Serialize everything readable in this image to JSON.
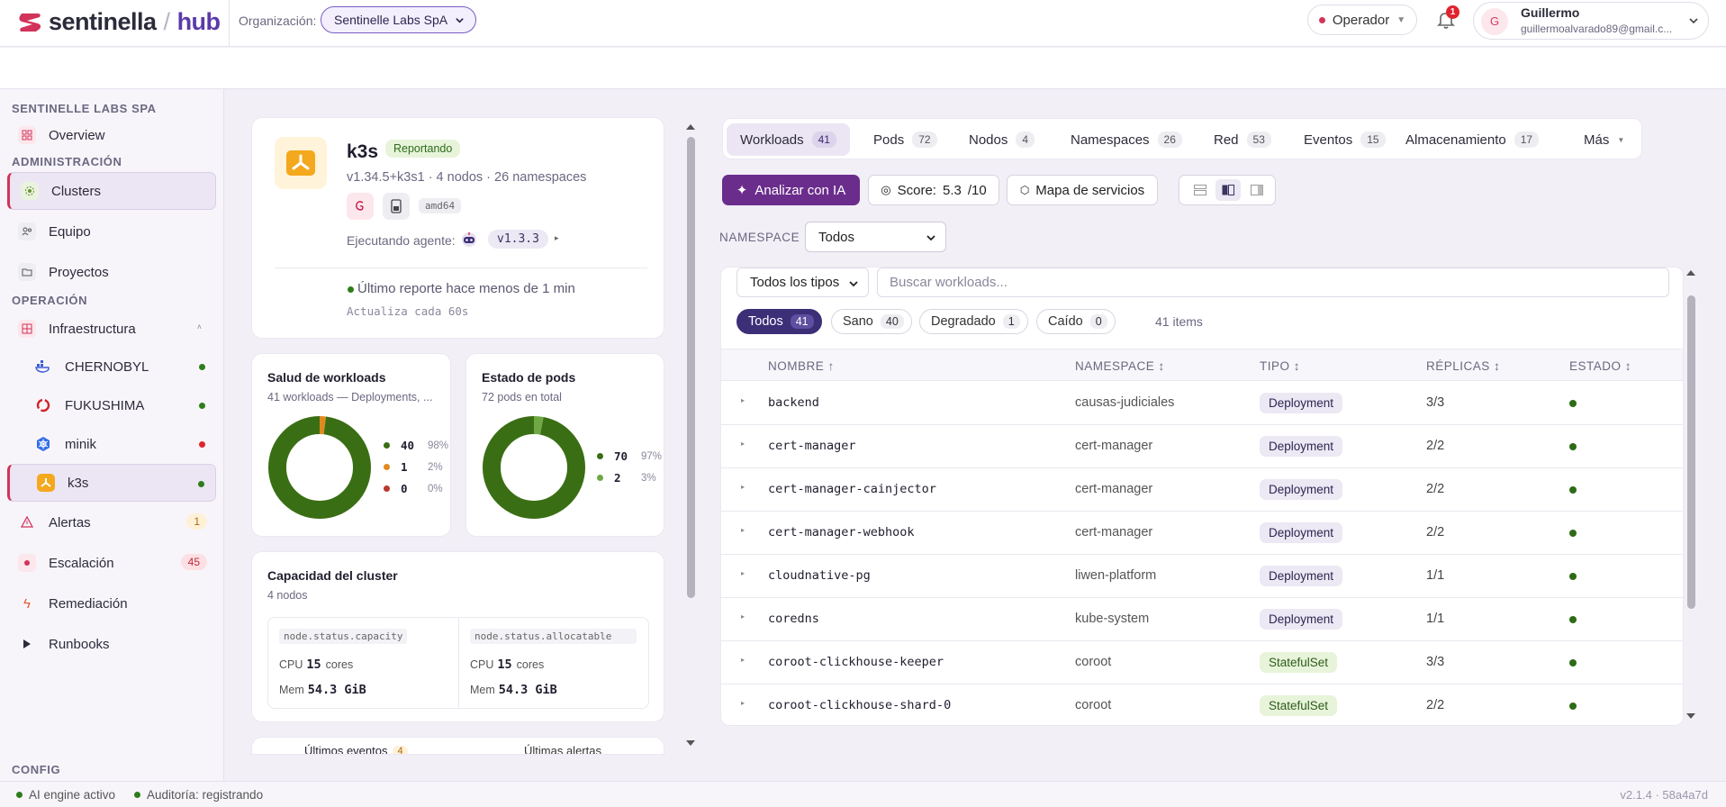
{
  "brand": {
    "name": "sentinella",
    "hub": "hub",
    "separator": "/"
  },
  "org": {
    "label": "Organización:",
    "value": "Sentinelle Labs SpA"
  },
  "role": {
    "value": "Operador"
  },
  "notifications": {
    "count": "1"
  },
  "user": {
    "initial": "G",
    "name": "Guillermo",
    "email": "guillermoalvarado89@gmail.c..."
  },
  "sidebar": {
    "org_section": "SENTINELLE LABS SPA",
    "admin_section": "ADMINISTRACIÓN",
    "ops_section": "OPERACIÓN",
    "config_section": "CONFIG",
    "overview": "Overview",
    "clusters": "Clusters",
    "equipo": "Equipo",
    "proyectos": "Proyectos",
    "infraestructura": "Infraestructura",
    "cluster_items": [
      {
        "name": "CHERNOBYL",
        "status_color": "#2e7d1a"
      },
      {
        "name": "FUKUSHIMA",
        "status_color": "#2e7d1a"
      },
      {
        "name": "minik",
        "status_color": "#e0242f"
      },
      {
        "name": "k3s",
        "status_color": "#2e7d1a"
      }
    ],
    "alertas": "Alertas",
    "alertas_count": "1",
    "escalacion": "Escalación",
    "escalacion_count": "45",
    "remediacion": "Remediación",
    "runbooks": "Runbooks"
  },
  "cluster": {
    "name": "k3s",
    "status": "Reportando",
    "meta": "v1.34.5+k3s1 · 4 nodos · 26 namespaces",
    "arch": "amd64",
    "agent_label": "Ejecutando agente:",
    "agent_version": "v1.3.3",
    "last_report": "Último reporte hace menos de 1 min",
    "interval": "Actualiza cada 60s"
  },
  "workload_health": {
    "title": "Salud de workloads",
    "subtitle": "41 workloads — Deployments, ...",
    "items": [
      {
        "value": "40",
        "pct": "98%",
        "fraction": 0.98,
        "color": "#3a6e14"
      },
      {
        "value": "1",
        "pct": "2%",
        "fraction": 0.02,
        "color": "#e08a1e"
      },
      {
        "value": "0",
        "pct": "0%",
        "fraction": 0,
        "color": "#b73a2e"
      }
    ]
  },
  "pod_state": {
    "title": "Estado de pods",
    "subtitle": "72 pods en total",
    "items": [
      {
        "value": "70",
        "pct": "97%",
        "fraction": 0.97,
        "color": "#3a6e14"
      },
      {
        "value": "2",
        "pct": "3%",
        "fraction": 0.03,
        "color": "#6fa845"
      }
    ]
  },
  "capacity": {
    "title": "Capacidad del cluster",
    "subtitle": "4 nodos",
    "capacity_key": "node.status.capacity",
    "allocatable_key": "node.status.allocatable",
    "cpu_label": "CPU",
    "mem_label": "Mem",
    "cap_cpu": "15",
    "cap_mem": "54.3 GiB",
    "alloc_cpu": "15",
    "alloc_mem": "54.3 GiB",
    "cores_unit": "cores"
  },
  "bottom_tabs": {
    "events": "Últimos eventos",
    "events_count": "4",
    "alerts": "Últimas alertas"
  },
  "tabs": [
    {
      "label": "Workloads",
      "count": "41"
    },
    {
      "label": "Pods",
      "count": "72"
    },
    {
      "label": "Nodos",
      "count": "4"
    },
    {
      "label": "Namespaces",
      "count": "26"
    },
    {
      "label": "Red",
      "count": "53"
    },
    {
      "label": "Eventos",
      "count": "15"
    },
    {
      "label": "Almacenamiento",
      "count": "17"
    },
    {
      "label": "Más",
      "count": ""
    }
  ],
  "actions": {
    "ai": "Analizar con IA",
    "score_label": "Score:",
    "score_value": "5.3",
    "score_max": "/10",
    "map": "Mapa de servicios"
  },
  "namespace_filter": {
    "label": "NAMESPACE",
    "value": "Todos"
  },
  "type_filter": {
    "value": "Todos los tipos"
  },
  "search": {
    "placeholder": "Buscar workloads..."
  },
  "status_pills": [
    {
      "label": "Todos",
      "count": "41"
    },
    {
      "label": "Sano",
      "count": "40"
    },
    {
      "label": "Degradado",
      "count": "1"
    },
    {
      "label": "Caído",
      "count": "0"
    }
  ],
  "items_count": "41 items",
  "table": {
    "headers": {
      "name": "NOMBRE ↑",
      "namespace": "NAMESPACE ↕",
      "type": "TIPO ↕",
      "replicas": "RÉPLICAS ↕",
      "status": "ESTADO ↕"
    },
    "rows": [
      {
        "name": "backend",
        "namespace": "causas-judiciales",
        "type": "Deployment",
        "replicas": "3/3"
      },
      {
        "name": "cert-manager",
        "namespace": "cert-manager",
        "type": "Deployment",
        "replicas": "2/2"
      },
      {
        "name": "cert-manager-cainjector",
        "namespace": "cert-manager",
        "type": "Deployment",
        "replicas": "2/2"
      },
      {
        "name": "cert-manager-webhook",
        "namespace": "cert-manager",
        "type": "Deployment",
        "replicas": "2/2"
      },
      {
        "name": "cloudnative-pg",
        "namespace": "liwen-platform",
        "type": "Deployment",
        "replicas": "1/1"
      },
      {
        "name": "coredns",
        "namespace": "kube-system",
        "type": "Deployment",
        "replicas": "1/1"
      },
      {
        "name": "coroot-clickhouse-keeper",
        "namespace": "coroot",
        "type": "StatefulSet",
        "replicas": "3/3"
      },
      {
        "name": "coroot-clickhouse-shard-0",
        "namespace": "coroot",
        "type": "StatefulSet",
        "replicas": "2/2"
      }
    ]
  },
  "footer": {
    "ai": "AI engine activo",
    "audit": "Auditoría: registrando",
    "version": "v2.1.4 · 58a4a7d"
  }
}
